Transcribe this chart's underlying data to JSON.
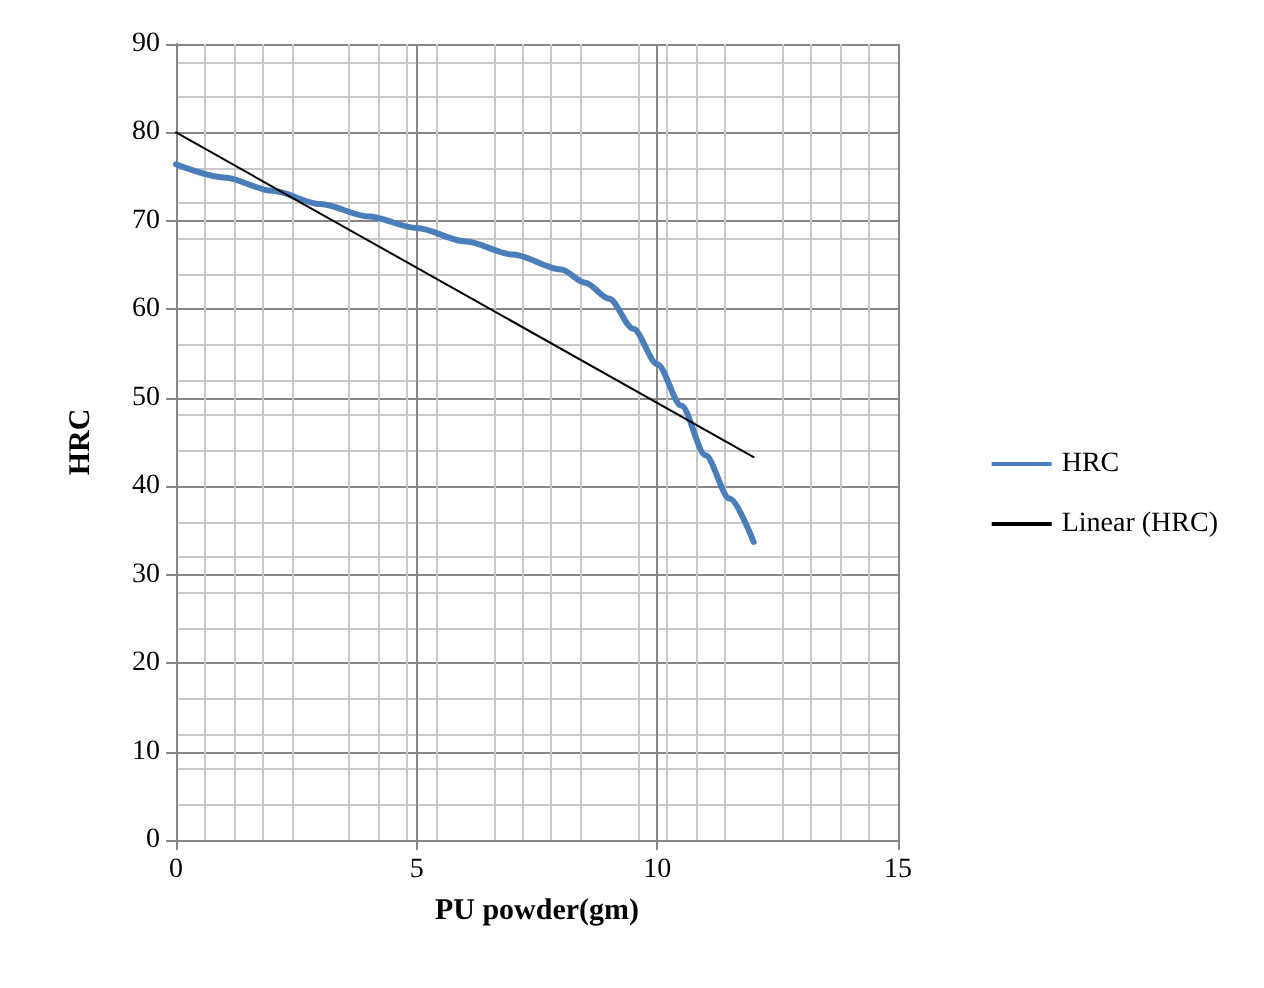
{
  "chart_data": {
    "type": "line",
    "xlabel": "PU powder(gm)",
    "ylabel": "HRC",
    "xlim": [
      0,
      15
    ],
    "xticks": [
      0,
      5,
      10,
      15
    ],
    "ylim": [
      0,
      90
    ],
    "yticks": [
      0,
      10,
      20,
      30,
      40,
      50,
      60,
      70,
      80,
      90
    ],
    "grid": true,
    "legend": "right",
    "marker": "none",
    "line_style": "solid",
    "series": [
      {
        "name": "HRC",
        "color": "#4a7ebb",
        "x": [
          0,
          1,
          2,
          3,
          4,
          5,
          6,
          7,
          8,
          8.5,
          9,
          9.5,
          10,
          10.5,
          11,
          11.5,
          12
        ],
        "values": [
          76.4,
          74.9,
          73.4,
          71.9,
          70.5,
          69.2,
          67.7,
          66.2,
          64.5,
          63,
          61.2,
          57.8,
          53.8,
          49.1,
          43.5,
          38.6,
          33.7
        ]
      },
      {
        "name": "Linear (HRC)",
        "color": "#000000",
        "x": [
          0,
          12
        ],
        "values": [
          80,
          43.3
        ]
      }
    ]
  }
}
